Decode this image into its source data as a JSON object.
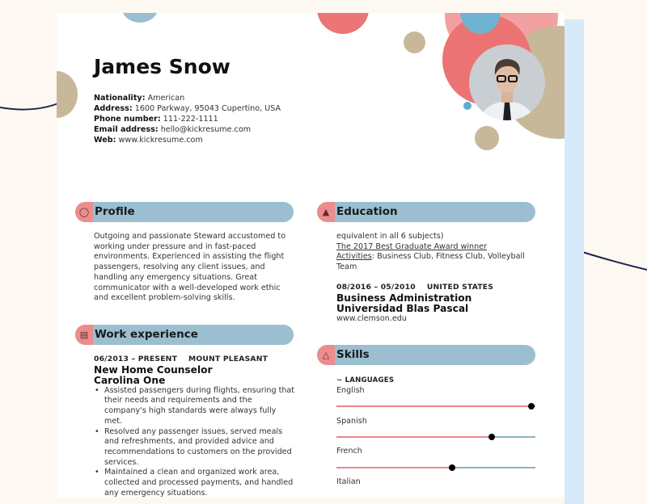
{
  "header": {
    "name": "James Snow",
    "contact": [
      {
        "label": "Nationality:",
        "value": "American"
      },
      {
        "label": "Address:",
        "value": "1600 Parkway, 95043 Cupertino, USA"
      },
      {
        "label": "Phone number:",
        "value": "111-222-1111"
      },
      {
        "label": "Email address:",
        "value": "hello@kickresume.com"
      },
      {
        "label": "Web:",
        "value": "www.kickresume.com"
      }
    ]
  },
  "colors": {
    "accent_blue": "#9bbfd1",
    "accent_red": "#ec8d8d",
    "beige": "#c8b89a",
    "background": "#fdf8f1"
  },
  "profile": {
    "title": "Profile",
    "icon": "person-icon",
    "text": "Outgoing and passionate Steward accustomed to working under pressure and in fast-paced environments. Experienced in assisting the flight passengers, resolving any client issues, and handling any emergency situations. Great communicator with a well-developed work ethic and excellent problem-solving skills."
  },
  "work": {
    "title": "Work experience",
    "icon": "briefcase-icon",
    "jobs": [
      {
        "dates": "06/2013 – PRESENT",
        "location": "MOUNT PLEASANT",
        "title": "New Home Counselor",
        "company": "Carolina One",
        "bullets": [
          "Assisted passengers during flights, ensuring that their needs and requirements and the company's high standards were always fully met.",
          "Resolved any passenger issues, served meals and refreshments, and provided advice and recommendations to customers on the provided services.",
          "Maintained a clean and organized work area, collected and processed payments, and handled any emergency situations."
        ]
      }
    ]
  },
  "education": {
    "title": "Education",
    "icon": "graduation-cap-icon",
    "continued": "equivalent in all 6 subjects)",
    "award": "The 2017 Best Graduate Award winner",
    "activities_label": "Activities",
    "activities": ": Business Club, Fitness Club, Volleyball Team",
    "entries": [
      {
        "dates": "08/2016 – 05/2010",
        "location": "UNITED STATES",
        "degree": "Business Administration",
        "school": "Universidad Blas Pascal",
        "web": "www.clemson.edu"
      }
    ]
  },
  "skills": {
    "title": "Skills",
    "icon": "flask-icon",
    "group": "~ LANGUAGES",
    "languages": [
      {
        "name": "English",
        "level": 0.98
      },
      {
        "name": "Spanish",
        "level": 0.78
      },
      {
        "name": "French",
        "level": 0.58
      },
      {
        "name": "Italian"
      }
    ]
  }
}
